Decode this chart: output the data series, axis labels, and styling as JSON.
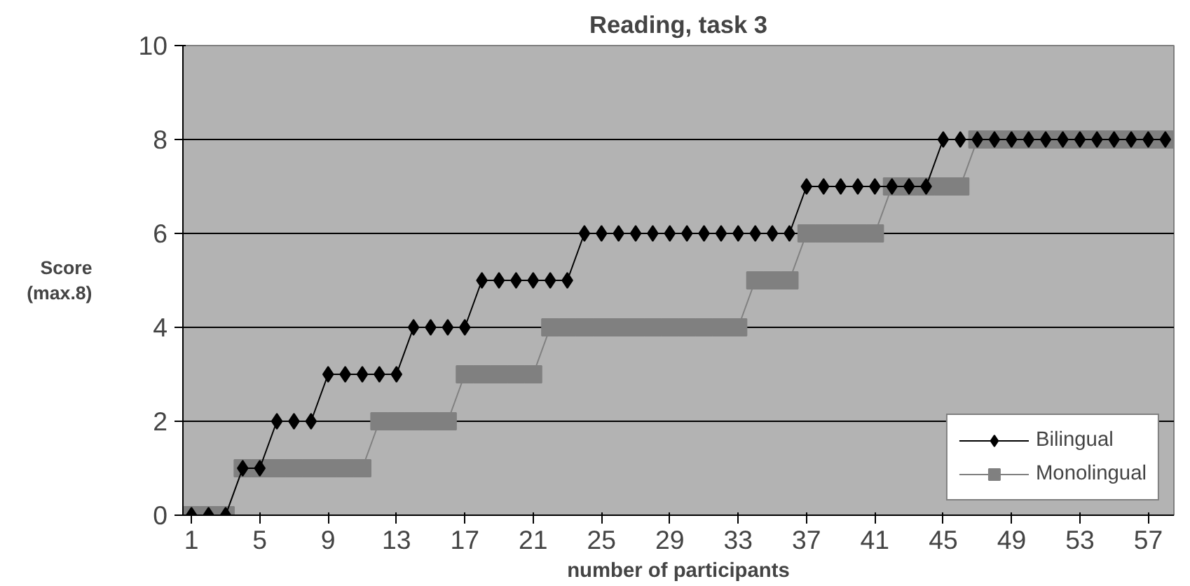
{
  "chart_data": {
    "type": "line",
    "title": "Reading, task 3",
    "xlabel": "number of participants",
    "ylabel": "Score\n(max.8)",
    "x": [
      1,
      2,
      3,
      4,
      5,
      6,
      7,
      8,
      9,
      10,
      11,
      12,
      13,
      14,
      15,
      16,
      17,
      18,
      19,
      20,
      21,
      22,
      23,
      24,
      25,
      26,
      27,
      28,
      29,
      30,
      31,
      32,
      33,
      34,
      35,
      36,
      37,
      38,
      39,
      40,
      41,
      42,
      43,
      44,
      45,
      46,
      47,
      48,
      49,
      50,
      51,
      52,
      53,
      54,
      55,
      56,
      57,
      58
    ],
    "xlim": [
      0.5,
      58.5
    ],
    "xticks": [
      1,
      5,
      9,
      13,
      17,
      21,
      25,
      29,
      33,
      37,
      41,
      45,
      49,
      53,
      57
    ],
    "ylim": [
      0,
      10
    ],
    "yticks": [
      0,
      2,
      4,
      6,
      8,
      10
    ],
    "grid": "y",
    "legend": "bottom right",
    "line_style": "solid",
    "series": [
      {
        "name": "Bilingual",
        "color": "#000000",
        "marker": "diamond",
        "values": [
          0,
          0,
          0,
          1,
          1,
          2,
          2,
          2,
          3,
          3,
          3,
          3,
          3,
          4,
          4,
          4,
          4,
          5,
          5,
          5,
          5,
          5,
          5,
          6,
          6,
          6,
          6,
          6,
          6,
          6,
          6,
          6,
          6,
          6,
          6,
          6,
          7,
          7,
          7,
          7,
          7,
          7,
          7,
          7,
          8,
          8,
          8,
          8,
          8,
          8,
          8,
          8,
          8,
          8,
          8,
          8,
          8,
          8
        ]
      },
      {
        "name": "Monolingual",
        "color": "#808080",
        "marker": "square",
        "values": [
          0,
          0,
          0,
          1,
          1,
          1,
          1,
          1,
          1,
          1,
          1,
          2,
          2,
          2,
          2,
          2,
          3,
          3,
          3,
          3,
          3,
          4,
          4,
          4,
          4,
          4,
          4,
          4,
          4,
          4,
          4,
          4,
          4,
          5,
          5,
          5,
          6,
          6,
          6,
          6,
          6,
          7,
          7,
          7,
          7,
          7,
          8,
          8,
          8,
          8,
          8,
          8,
          8,
          8,
          8,
          8,
          8,
          8
        ]
      }
    ]
  }
}
